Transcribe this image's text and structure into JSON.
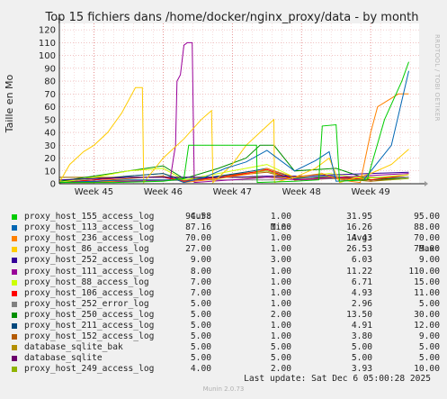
{
  "chart_data": {
    "type": "line",
    "title": "Top 15 fichiers dans /home/docker/nginx_proxy/data - by month",
    "ylabel": "Taille en Mo",
    "ylim": [
      0,
      125
    ],
    "yticks": [
      0,
      10,
      20,
      30,
      40,
      50,
      60,
      70,
      80,
      90,
      100,
      110,
      120
    ],
    "xlim": [
      44.5,
      49.7
    ],
    "xticks": [
      {
        "label": "Week 45",
        "value": 45.0
      },
      {
        "label": "Week 46",
        "value": 46.0
      },
      {
        "label": "Week 47",
        "value": 47.0
      },
      {
        "label": "Week 48",
        "value": 48.0
      },
      {
        "label": "Week 49",
        "value": 49.0
      }
    ],
    "grid": true,
    "legend_headers": {
      "cur": "Cur:",
      "min": "Min:",
      "avg": "Avg:",
      "max": "Max:"
    },
    "series": [
      {
        "name": "proxy_host_155_access_log",
        "color": "#00cc00",
        "cur": "94.58",
        "min": "1.00",
        "avg": "31.95",
        "max": "95.00",
        "points": [
          [
            44.5,
            1
          ],
          [
            45.3,
            1
          ],
          [
            46.0,
            2
          ],
          [
            46.3,
            4
          ],
          [
            46.37,
            30
          ],
          [
            47.35,
            30
          ],
          [
            47.36,
            1
          ],
          [
            47.9,
            2
          ],
          [
            48.25,
            3
          ],
          [
            48.3,
            45
          ],
          [
            48.5,
            46
          ],
          [
            48.55,
            2
          ],
          [
            48.95,
            3
          ],
          [
            49.2,
            50
          ],
          [
            49.45,
            80
          ],
          [
            49.55,
            95
          ]
        ]
      },
      {
        "name": "proxy_host_113_access_log",
        "color": "#0066b3",
        "cur": "87.16",
        "min": "1.00",
        "avg": "16.26",
        "max": "88.00",
        "points": [
          [
            44.5,
            1
          ],
          [
            45.0,
            2
          ],
          [
            45.5,
            3
          ],
          [
            46.2,
            3
          ],
          [
            46.3,
            1
          ],
          [
            46.6,
            5
          ],
          [
            46.9,
            12
          ],
          [
            47.2,
            17
          ],
          [
            47.5,
            26
          ],
          [
            47.9,
            10
          ],
          [
            48.2,
            18
          ],
          [
            48.4,
            25
          ],
          [
            48.5,
            2
          ],
          [
            48.9,
            3
          ],
          [
            49.3,
            30
          ],
          [
            49.55,
            88
          ]
        ]
      },
      {
        "name": "proxy_host_236_access_log",
        "color": "#ff8000",
        "cur": "70.00",
        "min": "1.00",
        "avg": "14.43",
        "max": "70.00",
        "points": [
          [
            44.5,
            1
          ],
          [
            45.0,
            1
          ],
          [
            45.6,
            3
          ],
          [
            46.2,
            3
          ],
          [
            46.3,
            1
          ],
          [
            46.8,
            4
          ],
          [
            47.3,
            8
          ],
          [
            47.5,
            12
          ],
          [
            47.9,
            5
          ],
          [
            48.3,
            8
          ],
          [
            48.5,
            4
          ],
          [
            48.7,
            2
          ],
          [
            48.85,
            1
          ],
          [
            49.0,
            40
          ],
          [
            49.1,
            60
          ],
          [
            49.4,
            70
          ],
          [
            49.55,
            70
          ]
        ]
      },
      {
        "name": "proxy_host_86_access_log",
        "color": "#ffcc00",
        "cur": "27.00",
        "min": "1.00",
        "avg": "26.53",
        "max": "79.00",
        "points": [
          [
            44.5,
            1
          ],
          [
            44.65,
            15
          ],
          [
            44.85,
            25
          ],
          [
            45.0,
            30
          ],
          [
            45.2,
            40
          ],
          [
            45.4,
            55
          ],
          [
            45.6,
            75
          ],
          [
            45.7,
            75
          ],
          [
            45.72,
            1
          ],
          [
            46.0,
            20
          ],
          [
            46.3,
            35
          ],
          [
            46.55,
            50
          ],
          [
            46.7,
            57
          ],
          [
            46.72,
            1
          ],
          [
            47.0,
            15
          ],
          [
            47.2,
            30
          ],
          [
            47.4,
            40
          ],
          [
            47.6,
            50
          ],
          [
            47.61,
            1
          ],
          [
            47.9,
            5
          ],
          [
            48.2,
            12
          ],
          [
            48.4,
            20
          ],
          [
            48.55,
            1
          ],
          [
            49.0,
            8
          ],
          [
            49.3,
            15
          ],
          [
            49.55,
            27
          ]
        ]
      },
      {
        "name": "proxy_host_252_access_log",
        "color": "#330099",
        "cur": "9.00",
        "min": "3.00",
        "avg": "6.03",
        "max": "9.00",
        "points": [
          [
            44.5,
            3
          ],
          [
            45.0,
            4
          ],
          [
            45.5,
            5
          ],
          [
            46.0,
            5
          ],
          [
            46.5,
            5
          ],
          [
            47.0,
            5
          ],
          [
            47.5,
            6
          ],
          [
            48.0,
            6
          ],
          [
            48.5,
            7
          ],
          [
            49.0,
            8
          ],
          [
            49.55,
            9
          ]
        ]
      },
      {
        "name": "proxy_host_111_access_log",
        "color": "#990099",
        "cur": "8.00",
        "min": "1.00",
        "avg": "11.22",
        "max": "110.00",
        "points": [
          [
            44.5,
            1
          ],
          [
            45.5,
            2
          ],
          [
            46.1,
            3
          ],
          [
            46.15,
            20
          ],
          [
            46.18,
            30
          ],
          [
            46.2,
            80
          ],
          [
            46.25,
            85
          ],
          [
            46.3,
            108
          ],
          [
            46.35,
            110
          ],
          [
            46.42,
            110
          ],
          [
            46.45,
            1
          ],
          [
            47.0,
            3
          ],
          [
            47.5,
            5
          ],
          [
            48.0,
            3
          ],
          [
            48.5,
            5
          ],
          [
            49.55,
            8
          ]
        ]
      },
      {
        "name": "proxy_host_88_access_log",
        "color": "#ccff00",
        "cur": "7.00",
        "min": "1.00",
        "avg": "6.71",
        "max": "15.00",
        "points": [
          [
            44.5,
            1
          ],
          [
            45.0,
            5
          ],
          [
            45.5,
            10
          ],
          [
            46.0,
            12
          ],
          [
            46.3,
            3
          ],
          [
            46.8,
            8
          ],
          [
            47.2,
            12
          ],
          [
            47.5,
            15
          ],
          [
            47.9,
            5
          ],
          [
            48.4,
            8
          ],
          [
            48.9,
            4
          ],
          [
            49.55,
            7
          ]
        ]
      },
      {
        "name": "proxy_host_106_access_log",
        "color": "#ff0000",
        "cur": "7.00",
        "min": "1.00",
        "avg": "4.93",
        "max": "11.00",
        "points": [
          [
            44.5,
            1
          ],
          [
            45.0,
            3
          ],
          [
            45.5,
            5
          ],
          [
            46.0,
            5
          ],
          [
            46.3,
            2
          ],
          [
            46.8,
            5
          ],
          [
            47.3,
            9
          ],
          [
            47.5,
            11
          ],
          [
            47.9,
            3
          ],
          [
            48.5,
            5
          ],
          [
            49.0,
            3
          ],
          [
            49.55,
            7
          ]
        ]
      },
      {
        "name": "proxy_host_252_error_log",
        "color": "#808080",
        "cur": "5.00",
        "min": "1.00",
        "avg": "2.96",
        "max": "5.00",
        "points": [
          [
            44.5,
            1
          ],
          [
            45.5,
            2
          ],
          [
            46.5,
            3
          ],
          [
            47.5,
            3
          ],
          [
            48.5,
            4
          ],
          [
            49.55,
            5
          ]
        ]
      },
      {
        "name": "proxy_host_250_access_log",
        "color": "#008f00",
        "cur": "5.00",
        "min": "2.00",
        "avg": "13.50",
        "max": "30.00",
        "points": [
          [
            44.5,
            2
          ],
          [
            45.0,
            6
          ],
          [
            45.5,
            10
          ],
          [
            46.0,
            14
          ],
          [
            46.3,
            4
          ],
          [
            46.8,
            12
          ],
          [
            47.2,
            20
          ],
          [
            47.4,
            30
          ],
          [
            47.6,
            30
          ],
          [
            47.9,
            10
          ],
          [
            48.5,
            12
          ],
          [
            49.0,
            3
          ],
          [
            49.55,
            5
          ]
        ]
      },
      {
        "name": "proxy_host_211_access_log",
        "color": "#00487d",
        "cur": "5.00",
        "min": "1.00",
        "avg": "4.91",
        "max": "12.00",
        "points": [
          [
            44.5,
            1
          ],
          [
            45.0,
            3
          ],
          [
            45.5,
            6
          ],
          [
            46.0,
            8
          ],
          [
            46.3,
            2
          ],
          [
            46.8,
            6
          ],
          [
            47.3,
            10
          ],
          [
            47.5,
            12
          ],
          [
            47.9,
            4
          ],
          [
            48.4,
            6
          ],
          [
            49.0,
            3
          ],
          [
            49.55,
            5
          ]
        ]
      },
      {
        "name": "proxy_host_152_access_log",
        "color": "#b35a00",
        "cur": "5.00",
        "min": "1.00",
        "avg": "3.80",
        "max": "9.00",
        "points": [
          [
            44.5,
            1
          ],
          [
            45.0,
            2
          ],
          [
            45.5,
            4
          ],
          [
            46.0,
            6
          ],
          [
            46.3,
            2
          ],
          [
            46.8,
            5
          ],
          [
            47.3,
            8
          ],
          [
            47.5,
            9
          ],
          [
            47.9,
            3
          ],
          [
            48.5,
            4
          ],
          [
            49.0,
            2
          ],
          [
            49.55,
            5
          ]
        ]
      },
      {
        "name": "database_sqlite_bak",
        "color": "#b38f00",
        "cur": "5.00",
        "min": "5.00",
        "avg": "5.00",
        "max": "5.00",
        "points": [
          [
            44.5,
            5
          ],
          [
            49.55,
            5
          ]
        ]
      },
      {
        "name": "database_sqlite",
        "color": "#6b006b",
        "cur": "5.00",
        "min": "5.00",
        "avg": "5.00",
        "max": "5.00",
        "points": [
          [
            44.5,
            5
          ],
          [
            49.55,
            5
          ]
        ]
      },
      {
        "name": "proxy_host_249_access_log",
        "color": "#8fb300",
        "cur": "4.00",
        "min": "2.00",
        "avg": "3.93",
        "max": "10.00",
        "points": [
          [
            44.5,
            2
          ],
          [
            45.0,
            4
          ],
          [
            45.5,
            6
          ],
          [
            46.0,
            8
          ],
          [
            46.3,
            3
          ],
          [
            46.8,
            6
          ],
          [
            47.3,
            9
          ],
          [
            47.5,
            10
          ],
          [
            47.9,
            3
          ],
          [
            48.5,
            5
          ],
          [
            49.0,
            2
          ],
          [
            49.55,
            4
          ]
        ]
      }
    ]
  },
  "watermark": "RRDTOOL / TOBI OETIKER",
  "last_update": "Last update:  Sat Dec  6 05:00:28 2025",
  "munin_version": "Munin 2.0.73"
}
